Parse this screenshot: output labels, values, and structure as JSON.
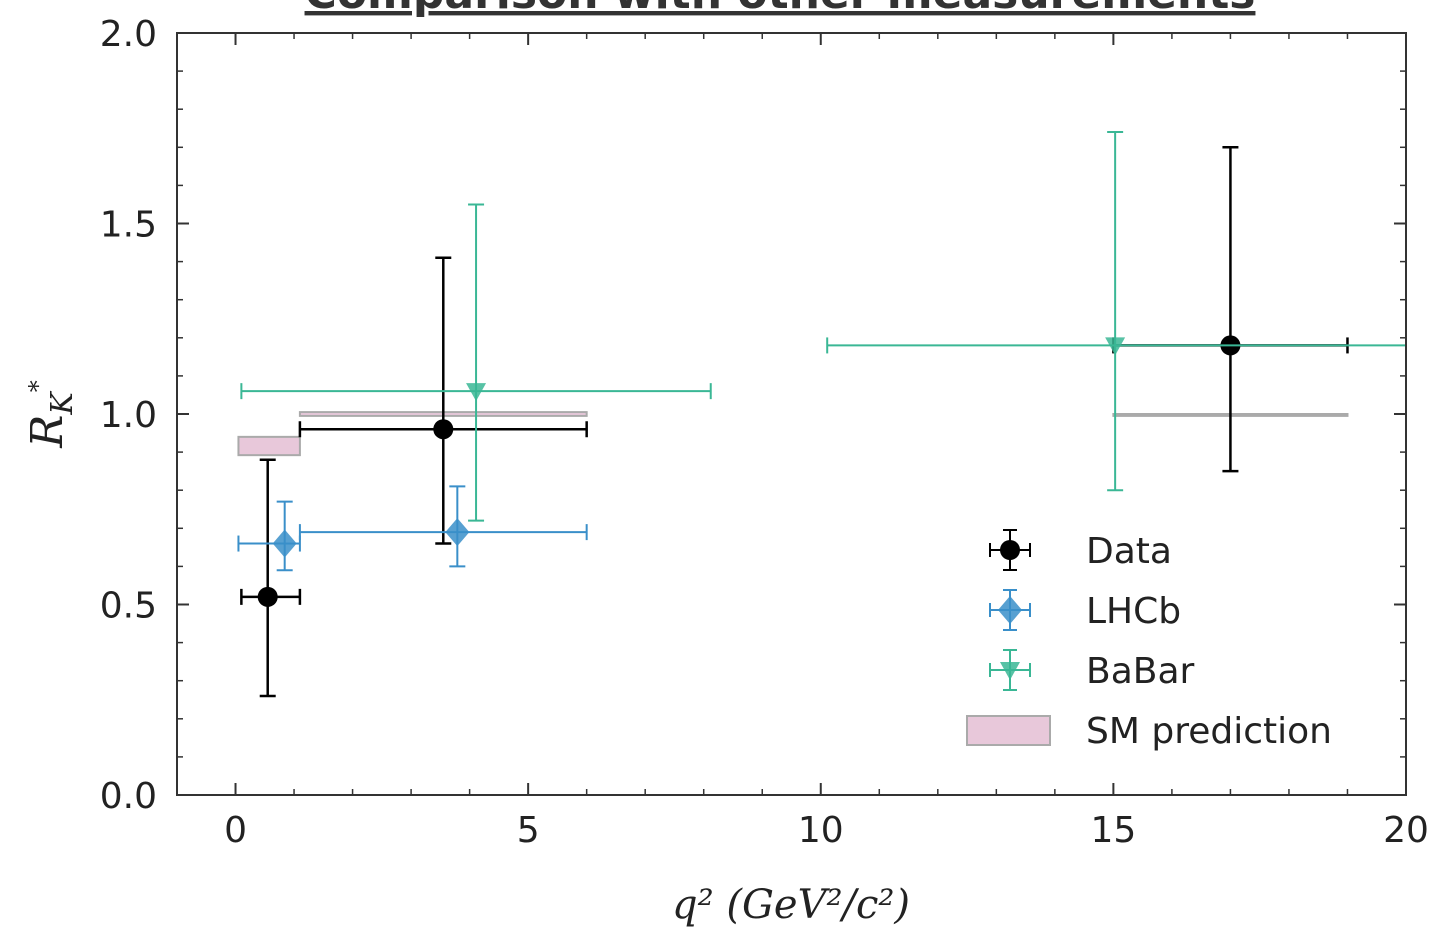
{
  "chart_data": {
    "type": "errorbar",
    "title": "Comparison with other measurements",
    "xlabel": "q² (GeV²/c²)",
    "ylabel": {
      "base": "R",
      "sub": "K",
      "sup": "*"
    },
    "xlim": [
      -1,
      20
    ],
    "ylim": [
      0,
      2
    ],
    "xticks": [
      0,
      5,
      10,
      15,
      20
    ],
    "yticks": [
      {
        "value": 0,
        "label": "0.0"
      },
      0.5,
      {
        "value": 1,
        "label": "1.0"
      },
      1.5,
      {
        "value": 2,
        "label": "2.0"
      }
    ],
    "legend": "lower right",
    "series": [
      {
        "name": "Data",
        "color": "#000000",
        "marker": "circle",
        "x": [
          0.55,
          3.55,
          17.0
        ],
        "values": [
          0.52,
          0.96,
          1.18
        ],
        "xerr": [
          [
            0.45,
            0.55
          ],
          [
            2.45,
            2.45
          ],
          [
            2.0,
            2.0
          ]
        ],
        "yerr": [
          [
            0.26,
            0.36
          ],
          [
            0.3,
            0.45
          ],
          [
            0.33,
            0.52
          ]
        ]
      },
      {
        "name": "LHCb",
        "color": "#3a8fc9",
        "marker": "diamond",
        "x": [
          0.84,
          3.79
        ],
        "values": [
          0.66,
          0.69
        ],
        "xerr": [
          [
            0.79,
            0.26
          ],
          [
            2.69,
            2.21
          ]
        ],
        "yerr": [
          [
            0.07,
            0.11
          ],
          [
            0.09,
            0.12
          ]
        ]
      },
      {
        "name": "BaBar",
        "color": "#3ab795",
        "marker": "triangle-down",
        "x": [
          4.11,
          15.03
        ],
        "values": [
          1.06,
          1.18
        ],
        "xerr": [
          [
            4.01,
            4.01
          ],
          [
            4.92,
            4.97
          ]
        ],
        "yerr": [
          [
            0.34,
            0.49
          ],
          [
            0.38,
            0.56
          ]
        ]
      }
    ],
    "bands": {
      "name": "SM prediction",
      "color": "#e8c8da",
      "edgecolor": "#aaaaaa",
      "x_low": [
        0.05,
        1.1,
        15.0
      ],
      "x_high": [
        1.1,
        6.0,
        19.0
      ],
      "y_low": [
        0.892,
        0.995,
        0.995
      ],
      "y_high": [
        0.94,
        1.005,
        1.0
      ]
    }
  }
}
